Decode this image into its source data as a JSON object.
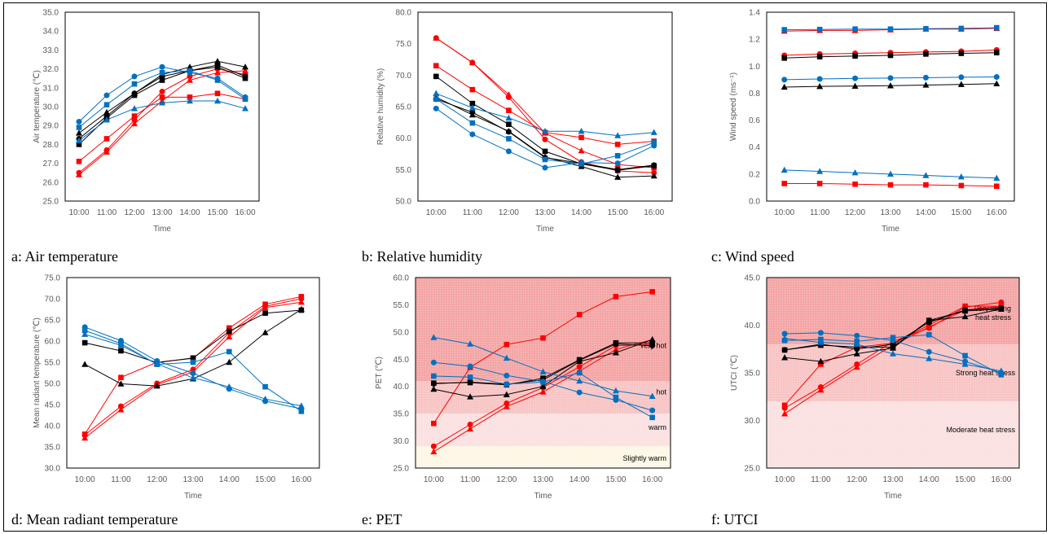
{
  "colors": {
    "red": "#ff0000",
    "black": "#000000",
    "blue": "#0070c0"
  },
  "panels": [
    {
      "id": "a",
      "caption": "a: Air temperature",
      "chart_data": {
        "type": "line",
        "xlabel": "Time",
        "ylabel": "Air temperature (℃)",
        "categories": [
          "10:00",
          "11:00",
          "12:00",
          "13:00",
          "14:00",
          "15:00",
          "16:00"
        ],
        "ylim": [
          25.0,
          35.0
        ],
        "yticks": [
          "25.0",
          "26.0",
          "27.0",
          "28.0",
          "29.0",
          "30.0",
          "31.0",
          "32.0",
          "33.0",
          "34.0",
          "35.0"
        ],
        "grid": false,
        "series": [
          {
            "color": "red",
            "marker": "square",
            "values": [
              27.1,
              28.3,
              29.5,
              30.5,
              30.5,
              30.7,
              30.4
            ]
          },
          {
            "color": "red",
            "marker": "circle",
            "values": [
              26.5,
              27.7,
              29.3,
              30.8,
              31.6,
              32.0,
              31.7
            ]
          },
          {
            "color": "red",
            "marker": "triangle",
            "values": [
              26.4,
              27.6,
              29.1,
              30.3,
              31.4,
              31.8,
              31.9
            ]
          },
          {
            "color": "black",
            "marker": "square",
            "values": [
              28.0,
              29.4,
              30.6,
              31.4,
              31.9,
              32.1,
              31.5
            ]
          },
          {
            "color": "black",
            "marker": "circle",
            "values": [
              28.3,
              29.5,
              30.7,
              31.6,
              31.9,
              32.2,
              31.6
            ]
          },
          {
            "color": "black",
            "marker": "triangle",
            "values": [
              28.6,
              29.7,
              30.7,
              31.7,
              32.1,
              32.4,
              32.1
            ]
          },
          {
            "color": "blue",
            "marker": "square",
            "values": [
              28.9,
              30.1,
              31.2,
              31.8,
              31.9,
              31.4,
              30.4
            ]
          },
          {
            "color": "blue",
            "marker": "circle",
            "values": [
              29.2,
              30.6,
              31.6,
              32.1,
              31.8,
              31.5,
              30.5
            ]
          },
          {
            "color": "blue",
            "marker": "triangle",
            "values": [
              28.2,
              29.3,
              29.9,
              30.2,
              30.3,
              30.3,
              29.9
            ]
          }
        ]
      }
    },
    {
      "id": "b",
      "caption": "b: Relative humidity",
      "chart_data": {
        "type": "line",
        "xlabel": "Time",
        "ylabel": "Relative humidity (%)",
        "categories": [
          "10:00",
          "11:00",
          "12:00",
          "13:00",
          "14:00",
          "15:00",
          "16:00"
        ],
        "ylim": [
          50.0,
          80.0
        ],
        "yticks": [
          "50.0",
          "55.0",
          "60.0",
          "65.0",
          "70.0",
          "75.0",
          "80.0"
        ],
        "grid": false,
        "series": [
          {
            "color": "red",
            "marker": "square",
            "values": [
              71.5,
              67.7,
              64.4,
              60.9,
              60.1,
              59.0,
              59.5
            ]
          },
          {
            "color": "red",
            "marker": "circle",
            "values": [
              75.9,
              72.0,
              66.5,
              59.8,
              56.2,
              54.8,
              54.5
            ]
          },
          {
            "color": "red",
            "marker": "triangle",
            "values": [
              75.9,
              72.0,
              66.9,
              60.8,
              58.0,
              55.8,
              55.3
            ]
          },
          {
            "color": "black",
            "marker": "square",
            "values": [
              69.8,
              65.5,
              62.2,
              57.9,
              55.9,
              54.9,
              55.6
            ]
          },
          {
            "color": "black",
            "marker": "circle",
            "values": [
              66.2,
              64.1,
              61.0,
              56.9,
              56.0,
              55.0,
              55.7
            ]
          },
          {
            "color": "black",
            "marker": "triangle",
            "values": [
              66.5,
              63.7,
              61.1,
              57.0,
              55.5,
              53.8,
              54.0
            ]
          },
          {
            "color": "blue",
            "marker": "square",
            "values": [
              66.2,
              62.4,
              59.9,
              56.6,
              55.9,
              57.2,
              59.3
            ]
          },
          {
            "color": "blue",
            "marker": "circle",
            "values": [
              64.7,
              60.6,
              57.9,
              55.3,
              56.1,
              56.0,
              58.8
            ]
          },
          {
            "color": "blue",
            "marker": "triangle",
            "values": [
              67.1,
              64.8,
              63.2,
              61.1,
              61.1,
              60.4,
              60.9
            ]
          }
        ]
      }
    },
    {
      "id": "c",
      "caption": "c: Wind speed",
      "chart_data": {
        "type": "line",
        "xlabel": "Time",
        "ylabel": "Wind speed (ms⁻¹)",
        "categories": [
          "10:00",
          "11:00",
          "12:00",
          "13:00",
          "14:00",
          "15:00",
          "16:00"
        ],
        "ylim": [
          0.0,
          1.4
        ],
        "yticks": [
          "0.0",
          "0.2",
          "0.4",
          "0.6",
          "0.8",
          "1.0",
          "1.2",
          "1.4"
        ],
        "grid": false,
        "series": [
          {
            "color": "red",
            "marker": "square",
            "values": [
              0.13,
              0.13,
              0.125,
              0.12,
              0.12,
              0.115,
              0.11
            ]
          },
          {
            "color": "red",
            "marker": "circle",
            "values": [
              1.08,
              1.09,
              1.095,
              1.1,
              1.105,
              1.11,
              1.12
            ]
          },
          {
            "color": "red",
            "marker": "triangle",
            "values": [
              1.26,
              1.265,
              1.265,
              1.27,
              1.275,
              1.275,
              1.28
            ]
          },
          {
            "color": "black",
            "marker": "square",
            "values": [
              1.06,
              1.07,
              1.075,
              1.08,
              1.09,
              1.095,
              1.1
            ]
          },
          {
            "color": "black",
            "marker": "triangle",
            "values": [
              0.845,
              0.85,
              0.852,
              0.855,
              0.86,
              0.865,
              0.87
            ]
          },
          {
            "color": "blue",
            "marker": "circle",
            "values": [
              0.9,
              0.905,
              0.91,
              0.912,
              0.915,
              0.918,
              0.92
            ]
          },
          {
            "color": "blue",
            "marker": "square",
            "values": [
              1.27,
              1.272,
              1.275,
              1.275,
              1.278,
              1.28,
              1.285
            ]
          },
          {
            "color": "blue",
            "marker": "triangle",
            "values": [
              0.23,
              0.22,
              0.21,
              0.2,
              0.19,
              0.18,
              0.17
            ]
          }
        ]
      }
    },
    {
      "id": "d",
      "caption": "d: Mean radiant temperature",
      "chart_data": {
        "type": "line",
        "xlabel": "Time",
        "ylabel": "Mean radiant temperature (℃)",
        "categories": [
          "10:00",
          "11:00",
          "12:00",
          "13:00",
          "14:00",
          "15:00",
          "16:00"
        ],
        "ylim": [
          30.0,
          75.0
        ],
        "yticks": [
          "30.0",
          "35.0",
          "40.0",
          "45.0",
          "50.0",
          "55.0",
          "60.0",
          "65.0",
          "70.0",
          "75.0"
        ],
        "grid": false,
        "series": [
          {
            "color": "red",
            "marker": "square",
            "values": [
              38.0,
              51.4,
              55.0,
              55.9,
              63.1,
              68.7,
              70.5
            ]
          },
          {
            "color": "red",
            "marker": "circle",
            "values": [
              37.8,
              44.6,
              50.0,
              53.3,
              62.0,
              68.2,
              70.0
            ]
          },
          {
            "color": "red",
            "marker": "triangle",
            "values": [
              37.1,
              43.8,
              49.7,
              52.7,
              61.0,
              67.9,
              69.2
            ]
          },
          {
            "color": "black",
            "marker": "square",
            "values": [
              59.6,
              57.7,
              54.9,
              56.0,
              62.3,
              66.6,
              67.3
            ]
          },
          {
            "color": "black",
            "marker": "triangle",
            "values": [
              54.5,
              49.9,
              49.4,
              51.1,
              55.0,
              62.0,
              67.5
            ]
          },
          {
            "color": "blue",
            "marker": "circle",
            "values": [
              63.3,
              60.1,
              55.3,
              52.4,
              48.7,
              45.8,
              44.0
            ]
          },
          {
            "color": "blue",
            "marker": "square",
            "values": [
              62.5,
              59.4,
              54.5,
              55.0,
              57.5,
              49.2,
              43.4
            ]
          },
          {
            "color": "blue",
            "marker": "triangle",
            "values": [
              61.6,
              59.0,
              54.6,
              51.3,
              49.2,
              46.3,
              44.7
            ]
          }
        ]
      }
    },
    {
      "id": "e",
      "caption": "e: PET",
      "chart_data": {
        "type": "line",
        "xlabel": "Time",
        "ylabel": "PET (℃)",
        "categories": [
          "10:00",
          "11:00",
          "12:00",
          "13:00",
          "14:00",
          "15:00",
          "16:00"
        ],
        "ylim": [
          25.0,
          60.0
        ],
        "yticks": [
          "25.0",
          "30.0",
          "35.0",
          "40.0",
          "45.0",
          "50.0",
          "55.0",
          "60.0"
        ],
        "grid": false,
        "bands": [
          {
            "from": 41,
            "to": 60,
            "label": "very hot",
            "fill": "#f4a7a7",
            "label_y": 47.5
          },
          {
            "from": 35,
            "to": 41,
            "label": "hot",
            "fill": "#f8c5c5",
            "label_y": 39.0
          },
          {
            "from": 29,
            "to": 35,
            "label": "warm",
            "fill": "#fbe1e1",
            "label_y": 32.5
          },
          {
            "from": 25,
            "to": 29,
            "label": "Slightly warm",
            "fill": "#fdf7e6",
            "label_y": 26.8
          }
        ],
        "series": [
          {
            "color": "red",
            "marker": "square",
            "values": [
              33.2,
              43.5,
              47.7,
              48.9,
              53.2,
              56.5,
              57.4
            ]
          },
          {
            "color": "red",
            "marker": "circle",
            "values": [
              29.0,
              33.0,
              36.9,
              39.8,
              43.6,
              47.5,
              47.7
            ]
          },
          {
            "color": "red",
            "marker": "triangle",
            "values": [
              28.0,
              32.2,
              36.3,
              39.0,
              42.8,
              46.8,
              48.6
            ]
          },
          {
            "color": "black",
            "marker": "square",
            "values": [
              40.6,
              40.7,
              40.3,
              41.5,
              44.9,
              48.0,
              48.0
            ]
          },
          {
            "color": "black",
            "marker": "circle",
            "values": [
              40.5,
              40.8,
              40.4,
              41.2,
              44.8,
              47.8,
              47.5
            ]
          },
          {
            "color": "black",
            "marker": "triangle",
            "values": [
              39.5,
              38.1,
              38.5,
              40.0,
              44.6,
              46.2,
              48.6
            ]
          },
          {
            "color": "blue",
            "marker": "triangle",
            "values": [
              49.0,
              47.8,
              45.2,
              42.7,
              41.0,
              39.2,
              38.2
            ]
          },
          {
            "color": "blue",
            "marker": "circle",
            "values": [
              44.4,
              43.7,
              42.0,
              40.9,
              38.9,
              37.5,
              35.6
            ]
          },
          {
            "color": "blue",
            "marker": "square",
            "values": [
              41.9,
              41.7,
              40.4,
              40.8,
              42.5,
              38.0,
              34.3
            ]
          }
        ]
      }
    },
    {
      "id": "f",
      "caption": "f: UTCI",
      "chart_data": {
        "type": "line",
        "xlabel": "Time",
        "ylabel": "UTCI (℃)",
        "categories": [
          "10:00",
          "11:00",
          "12:00",
          "13:00",
          "14:00",
          "15:00",
          "16:00"
        ],
        "ylim": [
          25.0,
          45.0
        ],
        "yticks": [
          "25.0",
          "30.0",
          "35.0",
          "40.0",
          "45.0"
        ],
        "grid": false,
        "bands": [
          {
            "from": 38,
            "to": 45,
            "label": "Very strong heat stress",
            "fill": "#f4a7a7",
            "label_y": 41.5
          },
          {
            "from": 32,
            "to": 38,
            "label": "Strong heat stress",
            "fill": "#f8c5c5",
            "label_y": 35.0
          },
          {
            "from": 25,
            "to": 32,
            "label": "Moderate heat stress",
            "fill": "#fbe1e1",
            "label_y": 29.0
          }
        ],
        "series": [
          {
            "color": "red",
            "marker": "square",
            "values": [
              31.6,
              35.9,
              37.7,
              38.1,
              40.0,
              42.0,
              42.0
            ]
          },
          {
            "color": "red",
            "marker": "circle",
            "values": [
              31.3,
              33.5,
              35.9,
              38.3,
              39.7,
              41.9,
              42.4
            ]
          },
          {
            "color": "red",
            "marker": "triangle",
            "values": [
              30.7,
              33.2,
              35.6,
              37.9,
              39.8,
              41.6,
              42.0
            ]
          },
          {
            "color": "black",
            "marker": "square",
            "values": [
              37.4,
              37.9,
              37.7,
              37.7,
              40.5,
              41.5,
              41.7
            ]
          },
          {
            "color": "black",
            "marker": "circle",
            "values": [
              37.4,
              38.0,
              37.5,
              38.0,
              40.3,
              41.6,
              41.8
            ]
          },
          {
            "color": "black",
            "marker": "triangle",
            "values": [
              36.6,
              36.2,
              37.0,
              37.6,
              40.5,
              40.9,
              41.7
            ]
          },
          {
            "color": "blue",
            "marker": "circle",
            "values": [
              39.1,
              39.2,
              38.9,
              38.4,
              37.2,
              36.2,
              35.0
            ]
          },
          {
            "color": "blue",
            "marker": "square",
            "values": [
              38.4,
              38.5,
              38.3,
              38.7,
              39.0,
              36.8,
              34.8
            ]
          },
          {
            "color": "blue",
            "marker": "triangle",
            "values": [
              38.6,
              38.2,
              38.0,
              37.0,
              36.5,
              35.9,
              35.2
            ]
          }
        ]
      }
    }
  ]
}
